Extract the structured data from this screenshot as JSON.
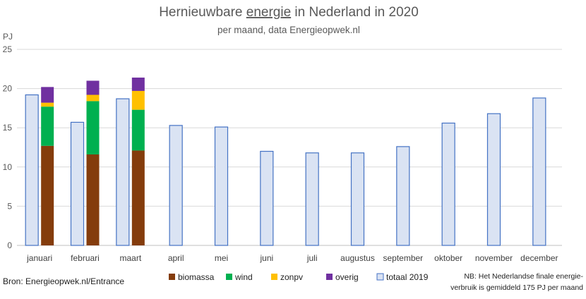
{
  "chart_data": {
    "type": "bar",
    "title": "Hernieuwbare energie in Nederland in 2020",
    "title_parts": [
      "Hernieuwbare ",
      "energie",
      " in Nederland in 2020"
    ],
    "subtitle": "per maand, data Energieopwek.nl",
    "ylabel": "PJ",
    "ylim": [
      0,
      25
    ],
    "yticks": [
      0,
      5,
      10,
      15,
      20,
      25
    ],
    "grid": true,
    "legend_position": "bottom",
    "categories": [
      "januari",
      "februari",
      "maart",
      "april",
      "mei",
      "juni",
      "juli",
      "augustus",
      "september",
      "oktober",
      "november",
      "december"
    ],
    "stacked_series": [
      {
        "name": "biomassa",
        "color": "#843c0c",
        "values": [
          12.7,
          11.6,
          12.1,
          null,
          null,
          null,
          null,
          null,
          null,
          null,
          null,
          null
        ]
      },
      {
        "name": "wind",
        "color": "#00b050",
        "values": [
          5.0,
          6.8,
          5.2,
          null,
          null,
          null,
          null,
          null,
          null,
          null,
          null,
          null
        ]
      },
      {
        "name": "zonpv",
        "color": "#ffc000",
        "values": [
          0.5,
          0.8,
          2.4,
          null,
          null,
          null,
          null,
          null,
          null,
          null,
          null,
          null
        ]
      },
      {
        "name": "overig",
        "color": "#7030a0",
        "values": [
          2.0,
          1.8,
          1.7,
          null,
          null,
          null,
          null,
          null,
          null,
          null,
          null,
          null
        ]
      }
    ],
    "comparison_series": {
      "name": "totaal 2019",
      "fill": "#dae3f3",
      "stroke": "#4472c4",
      "values": [
        19.2,
        15.7,
        18.7,
        15.3,
        15.1,
        12.0,
        11.8,
        11.8,
        12.6,
        15.6,
        16.8,
        18.8
      ]
    },
    "source": "Bron: Energieopwek.nl/Entrance",
    "note_lines": [
      "NB: Het Nederlandse finale energie-",
      "verbruik is gemiddeld 175 PJ per maand"
    ]
  }
}
